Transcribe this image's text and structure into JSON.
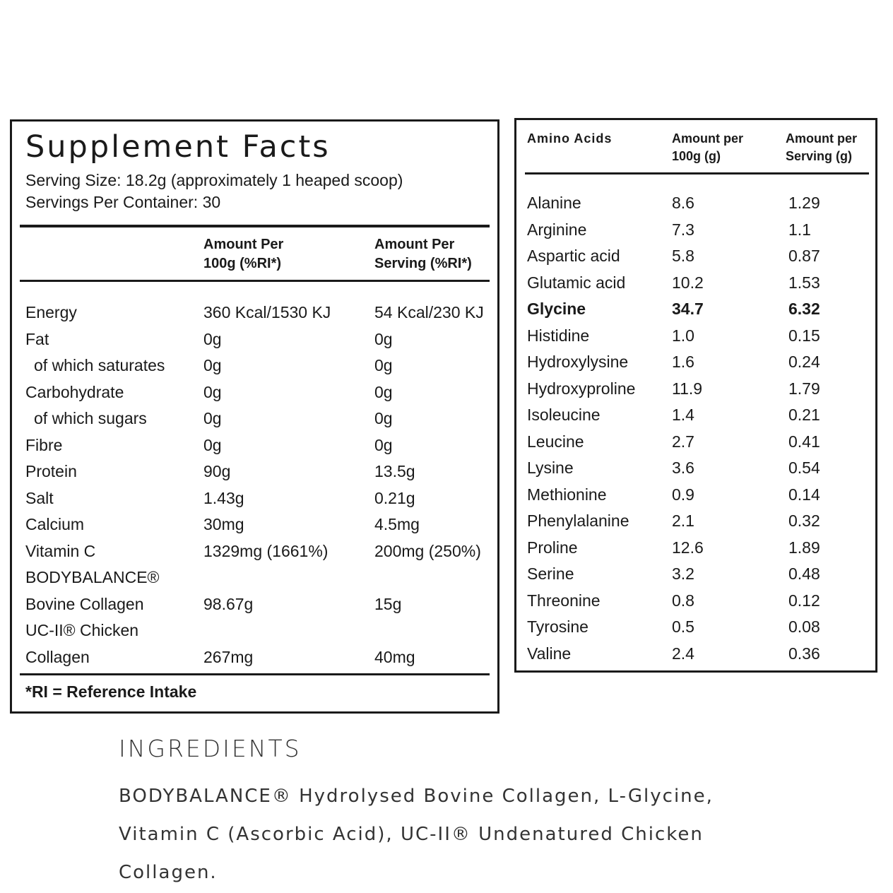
{
  "supplement_facts": {
    "title": "Supplement Facts",
    "serving_size": "Serving Size: 18.2g (approximately 1 heaped scoop)",
    "servings_per_container": "Servings Per Container: 30",
    "headers": [
      "Amount Per 100g (%RI*)",
      "Amount Per Serving (%RI*)"
    ],
    "rows": [
      {
        "label": "Energy",
        "per_100g": "360 Kcal/1530 KJ",
        "per_serving": "54 Kcal/230 KJ"
      },
      {
        "label": "Fat",
        "per_100g": "0g",
        "per_serving": "0g"
      },
      {
        "label": "of which saturates",
        "per_100g": "0g",
        "per_serving": "0g",
        "indent": true
      },
      {
        "label": "Carbohydrate",
        "per_100g": "0g",
        "per_serving": "0g"
      },
      {
        "label": "of which sugars",
        "per_100g": "0g",
        "per_serving": "0g",
        "indent": true
      },
      {
        "label": "Fibre",
        "per_100g": "0g",
        "per_serving": "0g"
      },
      {
        "label": "Protein",
        "per_100g": "90g",
        "per_serving": "13.5g"
      },
      {
        "label": "Salt",
        "per_100g": "1.43g",
        "per_serving": "0.21g"
      },
      {
        "label": "Calcium",
        "per_100g": "30mg",
        "per_serving": "4.5mg"
      },
      {
        "label": "Vitamin C",
        "per_100g": "1329mg (1661%)",
        "per_serving": "200mg (250%)"
      },
      {
        "label": "BODYBALANCE®"
      },
      {
        "label": "Bovine Collagen",
        "per_100g": "98.67g",
        "per_serving": "15g"
      },
      {
        "label": "UC-II® Chicken"
      },
      {
        "label": "Collagen",
        "per_100g": "267mg",
        "per_serving": "40mg"
      }
    ],
    "footnote": "*RI = Reference Intake"
  },
  "amino_acids": {
    "headers": [
      "Amino Acids",
      "Amount per 100g (g)",
      "Amount per Serving (g)"
    ],
    "rows": [
      {
        "name": "Alanine",
        "per_100g": "8.6",
        "per_serving": "1.29"
      },
      {
        "name": "Arginine",
        "per_100g": "7.3",
        "per_serving": "1.1"
      },
      {
        "name": "Aspartic acid",
        "per_100g": "5.8",
        "per_serving": "0.87"
      },
      {
        "name": "Glutamic acid",
        "per_100g": "10.2",
        "per_serving": "1.53"
      },
      {
        "name": "Glycine",
        "per_100g": "34.7",
        "per_serving": "6.32",
        "bold": true
      },
      {
        "name": "Histidine",
        "per_100g": "1.0",
        "per_serving": "0.15"
      },
      {
        "name": "Hydroxylysine",
        "per_100g": "1.6",
        "per_serving": "0.24"
      },
      {
        "name": "Hydroxyproline",
        "per_100g": "11.9",
        "per_serving": "1.79"
      },
      {
        "name": "Isoleucine",
        "per_100g": "1.4",
        "per_serving": "0.21"
      },
      {
        "name": "Leucine",
        "per_100g": "2.7",
        "per_serving": "0.41"
      },
      {
        "name": "Lysine",
        "per_100g": "3.6",
        "per_serving": "0.54"
      },
      {
        "name": "Methionine",
        "per_100g": "0.9",
        "per_serving": "0.14"
      },
      {
        "name": "Phenylalanine",
        "per_100g": "2.1",
        "per_serving": "0.32"
      },
      {
        "name": "Proline",
        "per_100g": "12.6",
        "per_serving": "1.89"
      },
      {
        "name": "Serine",
        "per_100g": "3.2",
        "per_serving": "0.48"
      },
      {
        "name": "Threonine",
        "per_100g": "0.8",
        "per_serving": "0.12"
      },
      {
        "name": "Tyrosine",
        "per_100g": "0.5",
        "per_serving": "0.08"
      },
      {
        "name": "Valine",
        "per_100g": "2.4",
        "per_serving": "0.36"
      }
    ]
  },
  "ingredients": {
    "title": "INGREDIENTS",
    "text": "BODYBALANCE® Hydrolysed Bovine Collagen, L-Glycine, Vitamin C (Ascorbic Acid), UC-II® Undenatured Chicken Collagen."
  }
}
